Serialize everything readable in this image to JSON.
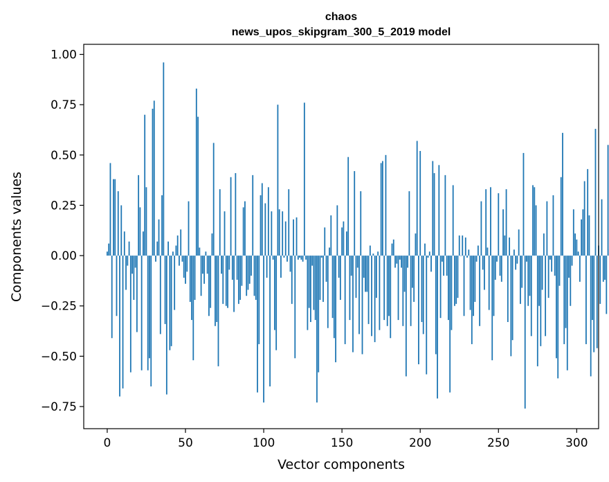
{
  "chart_data": {
    "type": "bar",
    "title": "chaos",
    "subtitle": "news_upos_skipgram_300_5_2019 model",
    "xlabel": "Vector components",
    "ylabel": "Components values",
    "xlim": [
      -15,
      314
    ],
    "ylim": [
      -0.86,
      1.05
    ],
    "xticks": [
      0,
      50,
      100,
      150,
      200,
      250,
      300
    ],
    "xtick_labels": [
      "0",
      "50",
      "100",
      "150",
      "200",
      "250",
      "300"
    ],
    "yticks": [
      -0.75,
      -0.5,
      -0.25,
      0.0,
      0.25,
      0.5,
      0.75,
      1.0
    ],
    "ytick_labels": [
      "−0.75",
      "−0.50",
      "−0.25",
      "0.00",
      "0.25",
      "0.50",
      "0.75",
      "1.00"
    ],
    "bar_color": "#1f77b4",
    "values": [
      0.02,
      0.06,
      0.46,
      -0.41,
      0.38,
      0.38,
      -0.3,
      0.32,
      -0.7,
      0.25,
      -0.66,
      0.12,
      -0.17,
      -0.05,
      0.07,
      -0.58,
      -0.09,
      -0.22,
      -0.06,
      -0.38,
      0.4,
      0.24,
      -0.57,
      0.12,
      0.7,
      0.34,
      -0.57,
      -0.51,
      -0.65,
      0.73,
      0.77,
      -0.03,
      0.07,
      0.18,
      -0.39,
      0.3,
      0.96,
      -0.34,
      -0.69,
      0.07,
      -0.47,
      -0.45,
      0.02,
      -0.27,
      0.05,
      0.1,
      -0.05,
      0.13,
      -0.03,
      -0.11,
      -0.14,
      -0.08,
      0.27,
      -0.23,
      -0.32,
      -0.52,
      -0.22,
      0.83,
      0.69,
      0.04,
      -0.2,
      -0.09,
      -0.14,
      0.02,
      -0.09,
      -0.3,
      -0.26,
      0.11,
      0.56,
      -0.35,
      -0.33,
      -0.55,
      0.33,
      -0.09,
      -0.24,
      0.22,
      -0.25,
      -0.26,
      -0.07,
      0.39,
      -0.12,
      -0.28,
      0.41,
      -0.12,
      -0.24,
      -0.22,
      -0.15,
      0.24,
      0.27,
      -0.2,
      -0.17,
      -0.14,
      -0.1,
      0.4,
      -0.2,
      -0.22,
      -0.68,
      -0.44,
      0.3,
      0.36,
      -0.73,
      0.26,
      -0.11,
      0.34,
      -0.65,
      0.22,
      -0.02,
      -0.37,
      -0.47,
      0.75,
      0.23,
      -0.11,
      0.22,
      -0.01,
      0.17,
      -0.03,
      0.33,
      -0.08,
      -0.24,
      0.18,
      -0.51,
      0.19,
      -0.02,
      -0.01,
      -0.02,
      -0.03,
      0.76,
      -0.02,
      -0.37,
      -0.26,
      -0.33,
      -0.05,
      -0.27,
      -0.32,
      -0.73,
      -0.58,
      -0.22,
      -0.01,
      -0.23,
      0.14,
      -0.13,
      -0.36,
      0.04,
      0.2,
      -0.31,
      -0.41,
      -0.53,
      0.25,
      -0.11,
      -0.22,
      0.14,
      0.17,
      -0.44,
      0.12,
      0.49,
      -0.32,
      -0.1,
      -0.48,
      0.42,
      -0.21,
      -0.06,
      -0.39,
      0.32,
      -0.49,
      -0.11,
      -0.18,
      -0.18,
      -0.34,
      0.05,
      -0.4,
      0.01,
      -0.43,
      -0.21,
      0.02,
      -0.37,
      0.46,
      0.47,
      -0.32,
      0.5,
      -0.35,
      -0.3,
      -0.41,
      0.06,
      0.08,
      -0.06,
      -0.04,
      -0.32,
      -0.02,
      -0.06,
      -0.35,
      -0.18,
      -0.6,
      -0.06,
      0.32,
      -0.35,
      -0.16,
      -0.23,
      0.11,
      0.57,
      -0.54,
      0.52,
      -0.33,
      -0.39,
      0.06,
      -0.59,
      -0.01,
      0.02,
      -0.08,
      0.47,
      0.41,
      -0.49,
      -0.71,
      0.45,
      -0.31,
      -0.03,
      -0.1,
      0.4,
      -0.1,
      -0.32,
      -0.68,
      -0.37,
      0.35,
      -0.25,
      -0.24,
      -0.21,
      0.1,
      0.0,
      0.1,
      -0.3,
      0.09,
      -0.01,
      0.03,
      -0.27,
      -0.44,
      -0.3,
      -0.23,
      -0.03,
      0.05,
      -0.35,
      0.27,
      -0.07,
      -0.17,
      0.33,
      0.04,
      -0.27,
      0.34,
      -0.52,
      -0.3,
      -0.12,
      -0.03,
      0.31,
      -0.1,
      -0.13,
      0.23,
      0.1,
      0.33,
      -0.33,
      0.09,
      -0.5,
      -0.42,
      0.03,
      -0.07,
      -0.04,
      0.13,
      -0.24,
      -0.16,
      0.51,
      -0.76,
      -0.03,
      -0.25,
      -0.2,
      -0.4,
      0.35,
      0.34,
      0.25,
      -0.55,
      -0.25,
      -0.45,
      -0.17,
      0.11,
      -0.4,
      0.27,
      -0.21,
      -0.02,
      -0.08,
      0.3,
      -0.1,
      -0.51,
      -0.61,
      -0.15,
      0.39,
      0.61,
      -0.44,
      -0.36,
      -0.57,
      -0.11,
      -0.25,
      -0.05,
      0.23,
      0.11,
      0.08,
      0.02,
      -0.13,
      0.18,
      0.23,
      0.37,
      -0.44,
      0.43,
      0.2,
      -0.6,
      -0.32,
      -0.48,
      0.63,
      -0.46,
      0.05,
      -0.24,
      0.28,
      -0.13,
      -0.12,
      -0.29,
      0.55,
      0.03,
      0.28
    ]
  }
}
